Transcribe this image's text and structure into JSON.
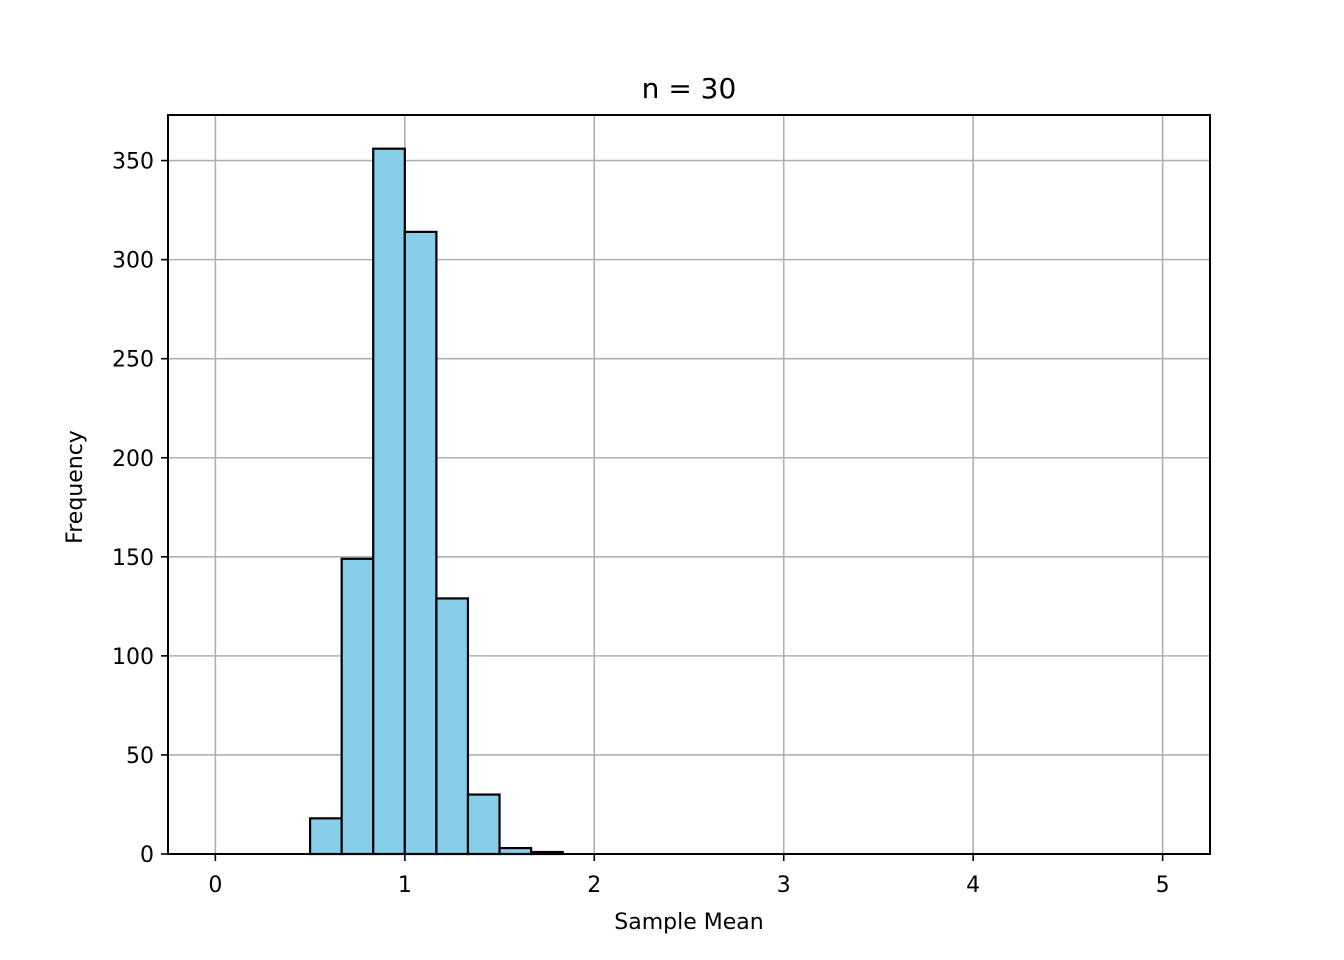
{
  "chart_data": {
    "type": "bar",
    "subtype": "histogram",
    "title": "n = 30",
    "xlabel": "Sample Mean",
    "ylabel": "Frequency",
    "xlim": [
      -0.25,
      5.25
    ],
    "ylim": [
      0,
      373
    ],
    "xticks": [
      0,
      1,
      2,
      3,
      4,
      5
    ],
    "yticks": [
      0,
      50,
      100,
      150,
      200,
      250,
      300,
      350
    ],
    "grid": true,
    "bar_color": "#87CEEB",
    "edge_color": "#000000",
    "bins": [
      {
        "x0": 0.0,
        "x1": 0.1667,
        "count": 0
      },
      {
        "x0": 0.1667,
        "x1": 0.3333,
        "count": 0
      },
      {
        "x0": 0.3333,
        "x1": 0.5,
        "count": 0
      },
      {
        "x0": 0.5,
        "x1": 0.6667,
        "count": 18
      },
      {
        "x0": 0.6667,
        "x1": 0.8333,
        "count": 149
      },
      {
        "x0": 0.8333,
        "x1": 1.0,
        "count": 356
      },
      {
        "x0": 1.0,
        "x1": 1.1667,
        "count": 314
      },
      {
        "x0": 1.1667,
        "x1": 1.3333,
        "count": 129
      },
      {
        "x0": 1.3333,
        "x1": 1.5,
        "count": 30
      },
      {
        "x0": 1.5,
        "x1": 1.6667,
        "count": 3
      },
      {
        "x0": 1.6667,
        "x1": 1.8333,
        "count": 1
      }
    ]
  }
}
